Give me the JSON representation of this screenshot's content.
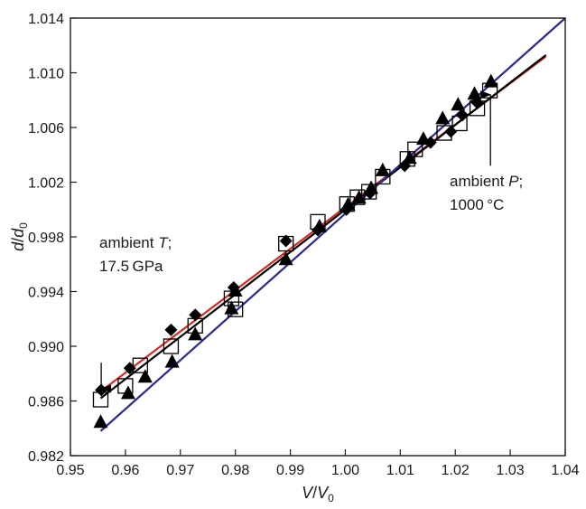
{
  "chart_data": {
    "type": "scatter",
    "x_axis": {
      "label": "V/V₀",
      "range": [
        0.95,
        1.04
      ],
      "ticks": [
        "0.95",
        "0.96",
        "0.97",
        "0.98",
        "0.99",
        "1.00",
        "1.01",
        "1.02",
        "1.03",
        "1.04"
      ]
    },
    "y_axis": {
      "label": "d/d₀",
      "range": [
        0.982,
        1.014
      ],
      "ticks": [
        "0.982",
        "0.986",
        "0.990",
        "0.994",
        "0.998",
        "1.002",
        "1.006",
        "1.010",
        "1.014"
      ]
    },
    "grid": false,
    "series": [
      {
        "marker": "open-square",
        "color": "#000000",
        "points": [
          [
            0.9555,
            0.9861
          ],
          [
            0.96,
            0.9871
          ],
          [
            0.9627,
            0.9886
          ],
          [
            0.9683,
            0.99
          ],
          [
            0.9727,
            0.9915
          ],
          [
            0.9793,
            0.9935
          ],
          [
            0.98,
            0.9927
          ],
          [
            0.9892,
            0.9975
          ],
          [
            0.995,
            0.9991
          ],
          [
            1.0003,
            1.0004
          ],
          [
            1.0022,
            1.0009
          ],
          [
            1.0043,
            1.0013
          ],
          [
            1.0068,
            1.0024
          ],
          [
            1.0113,
            1.0037
          ],
          [
            1.0127,
            1.0044
          ],
          [
            1.018,
            1.0056
          ],
          [
            1.0208,
            1.0063
          ],
          [
            1.024,
            1.0074
          ],
          [
            1.0263,
            1.0087
          ]
        ]
      },
      {
        "marker": "filled-diamond",
        "color": "#000000",
        "points": [
          [
            0.9556,
            0.9868
          ],
          [
            0.9608,
            0.9884
          ],
          [
            0.9683,
            0.9912
          ],
          [
            0.9727,
            0.9923
          ],
          [
            0.9797,
            0.9943
          ],
          [
            0.9892,
            0.9977
          ],
          [
            0.995,
            0.9985
          ],
          [
            1.0002,
            1.0
          ],
          [
            1.0045,
            1.0012
          ],
          [
            1.0108,
            1.0032
          ],
          [
            1.0155,
            1.0049
          ],
          [
            1.0192,
            1.0057
          ],
          [
            1.0213,
            1.0069
          ],
          [
            1.024,
            1.0078
          ]
        ]
      },
      {
        "marker": "filled-triangle",
        "color": "#000000",
        "points": [
          [
            0.9555,
            0.9845
          ],
          [
            0.9605,
            0.9866
          ],
          [
            0.9636,
            0.9878
          ],
          [
            0.9685,
            0.9889
          ],
          [
            0.9727,
            0.9909
          ],
          [
            0.9793,
            0.9928
          ],
          [
            0.98,
            0.9941
          ],
          [
            0.9892,
            0.9964
          ],
          [
            0.9953,
            0.9988
          ],
          [
            1.0005,
            1.0004
          ],
          [
            1.0025,
            1.0009
          ],
          [
            1.0047,
            1.0016
          ],
          [
            1.0068,
            1.0029
          ],
          [
            1.0117,
            1.0038
          ],
          [
            1.0142,
            1.0052
          ],
          [
            1.0177,
            1.0067
          ],
          [
            1.0205,
            1.0077
          ],
          [
            1.0235,
            1.0085
          ],
          [
            1.0265,
            1.0094
          ]
        ]
      }
    ],
    "lines": [
      {
        "color": "#d42a1f",
        "x": [
          0.9555,
          1.0365
        ],
        "y": [
          0.9867,
          1.0112
        ]
      },
      {
        "color": "#000000",
        "x": [
          0.9555,
          1.0365
        ],
        "y": [
          0.9862,
          1.0113
        ]
      },
      {
        "color": "#2b2a8f",
        "x": [
          0.9555,
          1.04
        ],
        "y": [
          0.9838,
          1.014
        ]
      }
    ],
    "annotations": [
      {
        "line1": "ambient ",
        "line1_italic": "T",
        "line1_end": ";",
        "line2": "17.5 GPa",
        "arrow_x": 0.9556,
        "arrow_from_y": 0.9888,
        "arrow_to_y": 0.9869
      },
      {
        "line1": "ambient ",
        "line1_italic": "P",
        "line1_end": ";",
        "line2": "1000 °C",
        "arrow_x": 1.0264,
        "arrow_from_y": 1.0032,
        "arrow_to_y": 1.0084
      }
    ]
  }
}
